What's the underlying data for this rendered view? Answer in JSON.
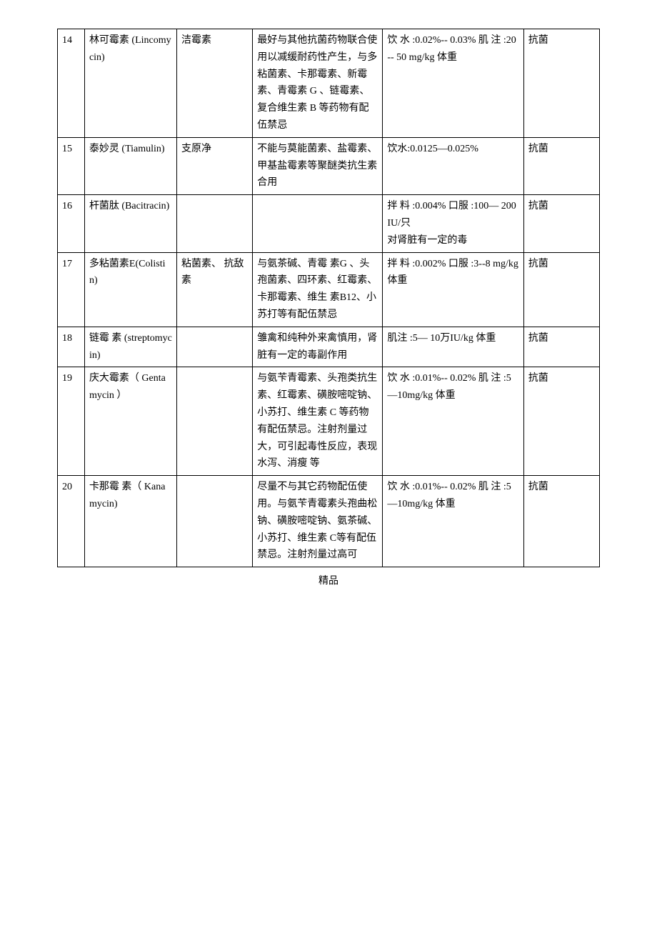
{
  "footer": "精品",
  "columns": [
    {
      "key": "num",
      "class": "col-num"
    },
    {
      "key": "name",
      "class": "col-name"
    },
    {
      "key": "alias",
      "class": "col-alias"
    },
    {
      "key": "note",
      "class": "col-note"
    },
    {
      "key": "dose",
      "class": "col-dose"
    },
    {
      "key": "type",
      "class": "col-type"
    }
  ],
  "rows": [
    {
      "num": "14",
      "name": "林可霉素 (Lincomycin)",
      "alias": "洁霉素",
      "note": "最好与其他抗菌药物联合使用以减缓耐药性产生，与多粘菌素、卡那霉素、新霉素、青霉素 G 、链霉素、复合维生素 B 等药物有配伍禁忌",
      "dose": "饮 水 :0.02%-- 0.03% 肌 注 :20-- 50 mg/kg 体重",
      "type": "抗菌"
    },
    {
      "num": "15",
      "name": "泰妙灵 (Tiamulin)",
      "alias": "支原净",
      "note": "不能与莫能菌素、盐霉素、甲基盐霉素等聚醚类抗生素合用",
      "dose": "饮水:0.0125—0.025%",
      "type": "抗菌"
    },
    {
      "num": "16",
      "name": "杆菌肽 (Bacitracin)",
      "alias": "",
      "note": "",
      "dose": "拌 料 :0.004% 口服 :100— 200IU/只\n对肾脏有一定的毒",
      "type": "抗菌"
    },
    {
      "num": "17",
      "name": "多粘菌素E(Colistin)",
      "alias": "粘菌素、 抗敌素",
      "note": "与氨茶碱、青霉 素G  、头孢菌素、四环素、红霉素、卡那霉素、维生 素B12、小苏打等有配伍禁忌",
      "dose": "拌 料 :0.002% 口服 :3--8 mg/kg 体重",
      "type": "抗菌"
    },
    {
      "num": "18",
      "name": "链霉 素 (streptomycin)",
      "alias": "",
      "note": "雏禽和纯种外来禽慎用，肾脏有一定的毒副作用",
      "dose": "肌注 :5— 10万IU/kg 体重",
      "type": "抗菌"
    },
    {
      "num": "19",
      "name": "庆大霉素（ Gentamycin ）",
      "alias": "",
      "note": "与氨苄青霉素、头孢类抗生素、红霉素、磺胺嘧啶钠、小苏打、维生素 C 等药物有配伍禁忌。注射剂量过大，可引起毒性反应，表现水泻、消瘦 等",
      "dose": "饮 水 :0.01%-- 0.02% 肌 注 :5—10mg/kg 体重",
      "type": "抗菌"
    },
    {
      "num": "20",
      "name": "卡那霉 素（ Kanamycin)",
      "alias": "",
      "note": "尽量不与其它药物配伍使用。与氨苄青霉素头孢曲松钠、磺胺嘧啶钠、氨茶碱、小苏打、维生素  C等有配伍禁忌。注射剂量过高可",
      "dose": "饮 水 :0.01%-- 0.02% 肌 注 :5—10mg/kg 体重",
      "type": "抗菌"
    }
  ]
}
